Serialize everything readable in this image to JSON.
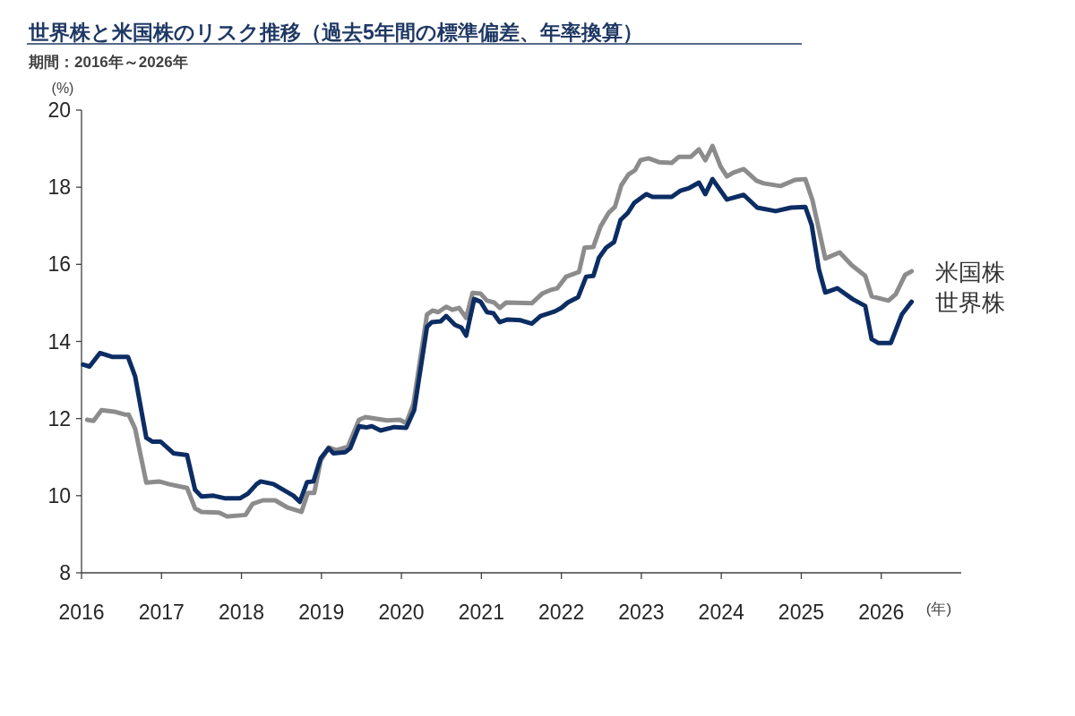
{
  "chart_data": {
    "type": "line",
    "title": "世界株と米国株のリスク推移（過去5年間の標準偏差、年率換算）",
    "subtitle": "期間：2016年～2026年",
    "xlabel": "(年)",
    "ylabel": "(%)",
    "xlim": [
      2016,
      2027
    ],
    "xticks": [
      2016,
      2017,
      2018,
      2019,
      2020,
      2021,
      2022,
      2023,
      2024,
      2025,
      2026
    ],
    "ylim": [
      8,
      20
    ],
    "yticks": [
      8,
      10,
      12,
      14,
      16,
      18,
      20
    ],
    "grid": false,
    "line_style": "solid",
    "marker": "none",
    "series": [
      {
        "name": "米国株",
        "color": "#8c8c8c",
        "x": [
          2016.07,
          2016.15,
          2016.25,
          2016.41,
          2016.55,
          2016.59,
          2016.67,
          2016.81,
          2016.97,
          2017.09,
          2017.32,
          2017.42,
          2017.5,
          2017.72,
          2017.82,
          2018.05,
          2018.14,
          2018.27,
          2018.42,
          2018.57,
          2018.75,
          2018.83,
          2018.91,
          2018.99,
          2019.09,
          2019.19,
          2019.33,
          2019.47,
          2019.55,
          2019.82,
          2019.98,
          2020.06,
          2020.15,
          2020.32,
          2020.39,
          2020.46,
          2020.56,
          2020.64,
          2020.72,
          2020.81,
          2020.89,
          2020.99,
          2021.07,
          2021.16,
          2021.23,
          2021.31,
          2021.63,
          2021.76,
          2021.86,
          2021.95,
          2022.06,
          2022.22,
          2022.29,
          2022.4,
          2022.49,
          2022.59,
          2022.67,
          2022.75,
          2022.84,
          2022.92,
          2022.99,
          2023.09,
          2023.22,
          2023.38,
          2023.47,
          2023.62,
          2023.72,
          2023.8,
          2023.89,
          2023.99,
          2024.07,
          2024.15,
          2024.28,
          2024.44,
          2024.53,
          2024.74,
          2024.92,
          2025.05,
          2025.14,
          2025.3,
          2025.48,
          2025.63,
          2025.8,
          2025.88,
          2026.09,
          2026.18,
          2026.3,
          2026.38
        ],
        "values": [
          11.97,
          11.94,
          12.22,
          12.18,
          12.1,
          12.1,
          11.74,
          10.34,
          10.37,
          10.3,
          10.2,
          9.67,
          9.58,
          9.56,
          9.46,
          9.5,
          9.79,
          9.88,
          9.88,
          9.7,
          9.58,
          10.07,
          10.07,
          10.9,
          11.25,
          11.18,
          11.27,
          11.97,
          12.04,
          11.95,
          11.97,
          11.88,
          12.38,
          14.7,
          14.8,
          14.76,
          14.9,
          14.82,
          14.87,
          14.61,
          15.26,
          15.24,
          15.06,
          15.01,
          14.87,
          15.01,
          14.99,
          15.24,
          15.33,
          15.38,
          15.68,
          15.8,
          16.43,
          16.45,
          16.98,
          17.33,
          17.49,
          18.05,
          18.33,
          18.44,
          18.7,
          18.75,
          18.65,
          18.63,
          18.79,
          18.79,
          18.98,
          18.7,
          19.07,
          18.54,
          18.28,
          18.38,
          18.47,
          18.17,
          18.1,
          18.03,
          18.19,
          18.21,
          17.66,
          16.15,
          16.31,
          15.98,
          15.7,
          15.17,
          15.06,
          15.22,
          15.73,
          15.82
        ]
      },
      {
        "name": "世界株",
        "color": "#0c2d63",
        "x": [
          2016.02,
          2016.1,
          2016.23,
          2016.38,
          2016.58,
          2016.67,
          2016.81,
          2016.89,
          2016.99,
          2017.15,
          2017.32,
          2017.42,
          2017.5,
          2017.65,
          2017.8,
          2017.98,
          2018.08,
          2018.19,
          2018.24,
          2018.4,
          2018.65,
          2018.73,
          2018.82,
          2018.9,
          2018.99,
          2019.09,
          2019.15,
          2019.3,
          2019.36,
          2019.47,
          2019.56,
          2019.63,
          2019.74,
          2019.91,
          2020.06,
          2020.16,
          2020.32,
          2020.38,
          2020.49,
          2020.56,
          2020.67,
          2020.75,
          2020.81,
          2020.91,
          2020.99,
          2021.07,
          2021.15,
          2021.23,
          2021.33,
          2021.49,
          2021.63,
          2021.74,
          2021.92,
          2022.0,
          2022.08,
          2022.21,
          2022.31,
          2022.4,
          2022.47,
          2022.56,
          2022.66,
          2022.74,
          2022.83,
          2022.91,
          2023.06,
          2023.14,
          2023.38,
          2023.49,
          2023.6,
          2023.72,
          2023.8,
          2023.89,
          2024.07,
          2024.28,
          2024.45,
          2024.68,
          2024.87,
          2025.05,
          2025.13,
          2025.22,
          2025.3,
          2025.45,
          2025.64,
          2025.8,
          2025.88,
          2025.96,
          2026.12,
          2026.26,
          2026.38
        ],
        "values": [
          13.4,
          13.35,
          13.7,
          13.6,
          13.6,
          13.1,
          11.5,
          11.4,
          11.4,
          11.1,
          11.05,
          10.15,
          9.98,
          10.0,
          9.93,
          9.93,
          10.05,
          10.3,
          10.37,
          10.3,
          10.0,
          9.84,
          10.35,
          10.37,
          10.97,
          11.23,
          11.1,
          11.13,
          11.23,
          11.8,
          11.77,
          11.8,
          11.69,
          11.78,
          11.76,
          12.22,
          14.38,
          14.5,
          14.52,
          14.66,
          14.43,
          14.36,
          14.15,
          15.1,
          15.03,
          14.76,
          14.73,
          14.5,
          14.57,
          14.55,
          14.46,
          14.66,
          14.78,
          14.87,
          15.01,
          15.15,
          15.68,
          15.7,
          16.17,
          16.43,
          16.58,
          17.15,
          17.33,
          17.59,
          17.82,
          17.75,
          17.75,
          17.91,
          17.98,
          18.12,
          17.82,
          18.21,
          17.68,
          17.8,
          17.47,
          17.38,
          17.47,
          17.49,
          17.02,
          15.87,
          15.27,
          15.38,
          15.1,
          14.92,
          14.06,
          13.96,
          13.96,
          14.71,
          15.03
        ]
      }
    ]
  }
}
